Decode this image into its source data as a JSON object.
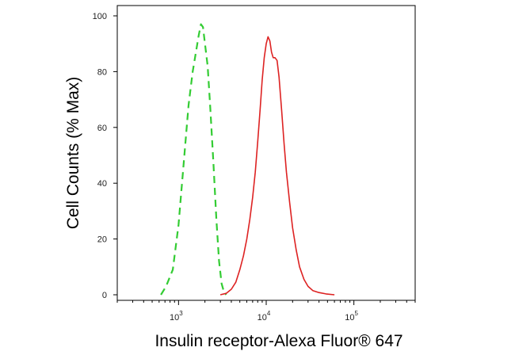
{
  "chart_data": {
    "type": "line",
    "title": "",
    "xlabel": "Insulin receptor-Alexa Fluor® 647",
    "ylabel": "Cell Counts (% Max)",
    "x_scale": "log",
    "xlim": [
      200,
      500000
    ],
    "ylim": [
      0,
      100
    ],
    "y_ticks": [
      0,
      20,
      40,
      60,
      80,
      100
    ],
    "x_ticks": [
      {
        "value": 1000,
        "base": "10",
        "exp": "3"
      },
      {
        "value": 10000,
        "base": "10",
        "exp": "4"
      },
      {
        "value": 100000,
        "base": "10",
        "exp": "5"
      }
    ],
    "grid": false,
    "legend": "none",
    "series": [
      {
        "color": "#33cc33",
        "style": "dashed",
        "x": [
          630,
          720,
          860,
          1000,
          1150,
          1300,
          1450,
          1600,
          1700,
          1800,
          1900,
          2000,
          2150,
          2300,
          2500,
          2700,
          2900,
          3100,
          3300,
          3500
        ],
        "y": [
          0,
          3,
          9,
          25,
          48,
          68,
          80,
          88,
          93,
          97,
          96,
          90,
          82,
          67,
          47,
          27,
          12,
          4,
          1,
          0
        ]
      },
      {
        "color": "#dd2222",
        "style": "solid",
        "x": [
          3000,
          3500,
          4000,
          4500,
          5000,
          5500,
          6000,
          6500,
          7000,
          7500,
          8000,
          8500,
          9000,
          9500,
          10000,
          10500,
          11000,
          11500,
          12000,
          12600,
          13300,
          14000,
          15000,
          16000,
          17000,
          18500,
          20000,
          22000,
          24000,
          27000,
          30000,
          34000,
          40000,
          48000,
          60000
        ],
        "y": [
          0,
          0.5,
          2,
          4.5,
          9,
          14,
          20,
          27,
          35,
          44,
          55,
          66,
          77,
          85,
          90,
          92.5,
          91,
          87,
          85,
          85,
          84,
          78,
          66,
          54,
          44,
          33,
          24,
          16,
          10,
          5.5,
          3,
          1.5,
          0.8,
          0.3,
          0
        ]
      }
    ]
  }
}
